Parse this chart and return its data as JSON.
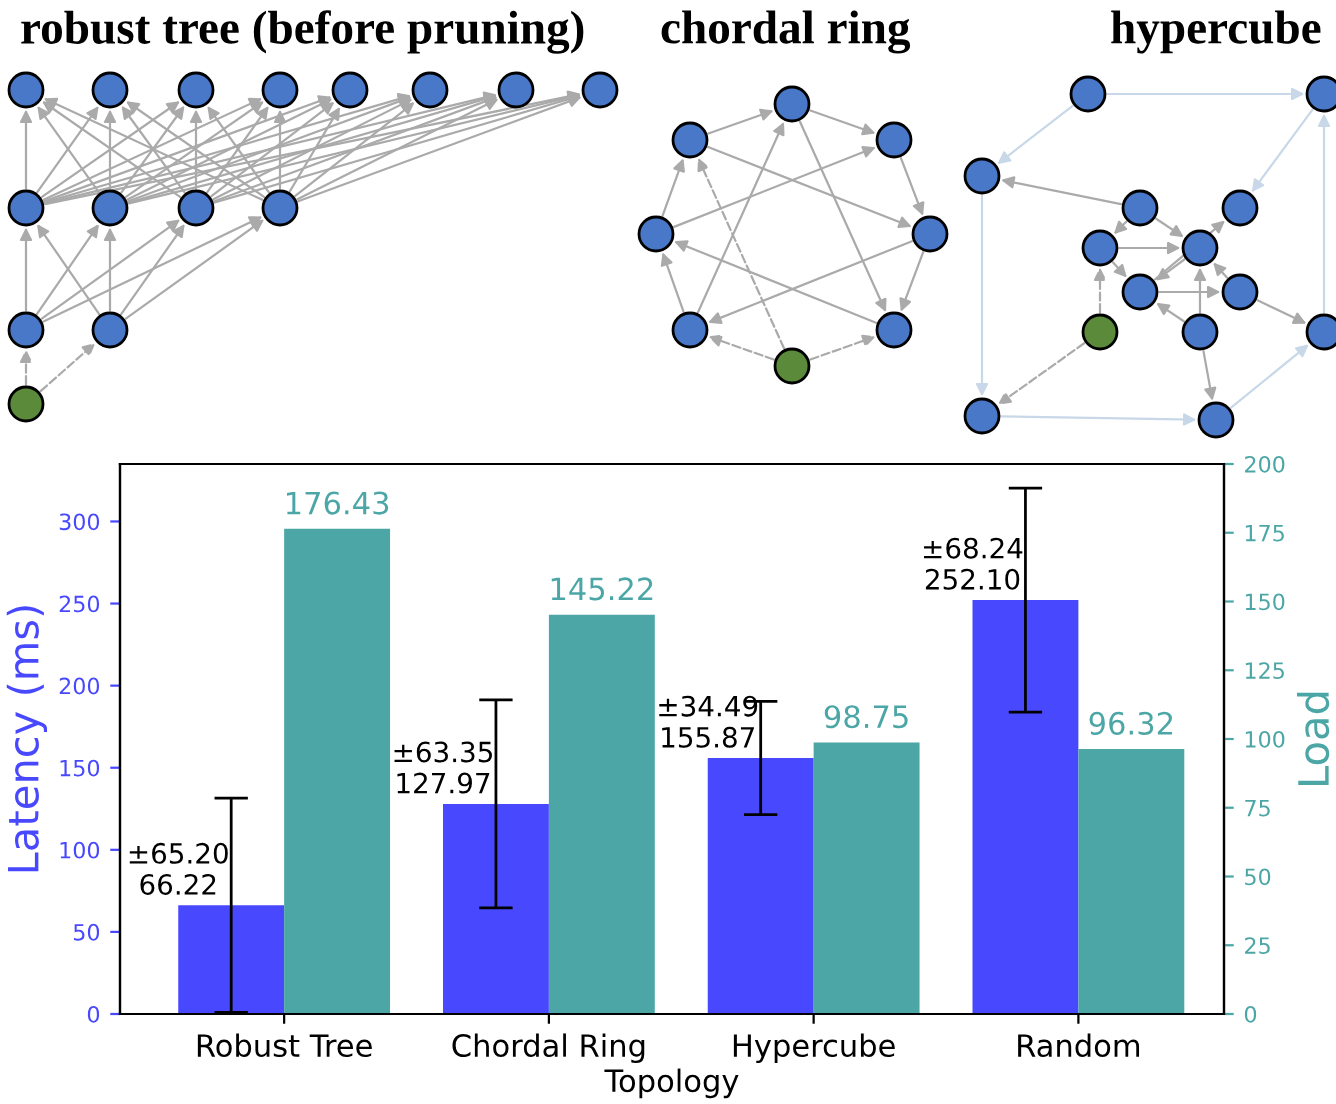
{
  "chart_data": {
    "type": "bar",
    "categories": [
      "Robust Tree",
      "Chordal Ring",
      "Hypercube",
      "Random"
    ],
    "xlabel": "Topology",
    "ylabel": "Latency (ms)",
    "y2label": "Load",
    "series": [
      {
        "name": null,
        "color": "#4848ff",
        "values": [
          66.22,
          127.97,
          155.87,
          252.1
        ],
        "errors": [
          65.2,
          63.35,
          34.49,
          68.24
        ],
        "value_labels": [
          "±65.20\n66.22",
          "±63.35\n127.97",
          "±34.49\n155.87",
          "±68.24\n252.10"
        ]
      },
      {
        "name": null,
        "color": "#4ca6a6",
        "axis": "y2",
        "values": [
          176.43,
          145.22,
          98.75,
          96.32
        ],
        "value_labels": [
          "176.43",
          "145.22",
          "98.75",
          "96.32"
        ]
      }
    ],
    "ylim": [
      0,
      335
    ],
    "yticks": [
      0,
      50,
      100,
      150,
      200,
      250,
      300
    ],
    "y2lim": [
      0,
      200
    ],
    "y2ticks": [
      0,
      25,
      50,
      75,
      100,
      125,
      150,
      175,
      200
    ],
    "grid": false,
    "legend": false,
    "annotations": [
      "robust tree (before pruning)",
      "chordal ring",
      "hypercube"
    ]
  }
}
